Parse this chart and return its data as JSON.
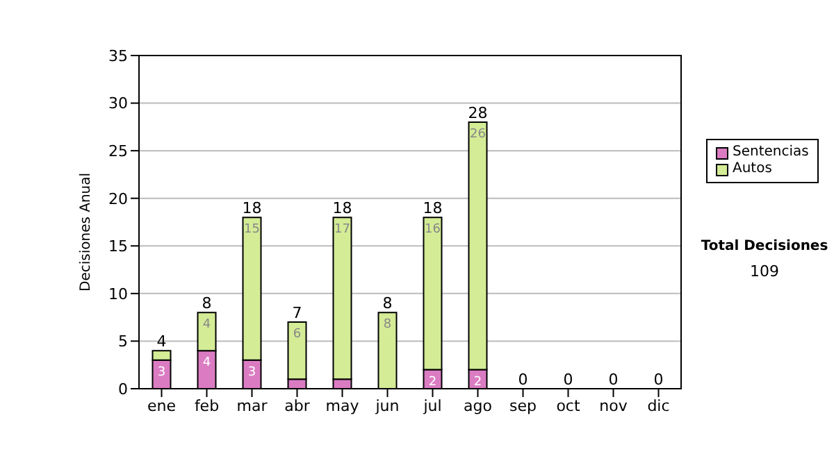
{
  "chart_data": {
    "type": "bar",
    "stacked": true,
    "ylabel": "Decisiones Anual",
    "categories": [
      "ene",
      "feb",
      "mar",
      "abr",
      "may",
      "jun",
      "jul",
      "ago",
      "sep",
      "oct",
      "nov",
      "dic"
    ],
    "series": [
      {
        "name": "Sentencias",
        "color": "#db7cc3",
        "values": [
          3,
          4,
          3,
          1,
          1,
          0,
          2,
          2,
          0,
          0,
          0,
          0
        ],
        "value_labels": [
          "3",
          "4",
          "3",
          null,
          null,
          null,
          "2",
          "2",
          null,
          null,
          null,
          null
        ]
      },
      {
        "name": "Autos",
        "color": "#d4ec96",
        "values": [
          1,
          4,
          15,
          6,
          17,
          8,
          16,
          26,
          0,
          0,
          0,
          0
        ],
        "value_labels": [
          null,
          "4",
          "15",
          "6",
          "17",
          "8",
          "16",
          "26",
          null,
          null,
          null,
          null
        ]
      }
    ],
    "totals": [
      "4",
      "8",
      "18",
      "7",
      "18",
      "8",
      "18",
      "28",
      "0",
      "0",
      "0",
      "0"
    ],
    "ylim": [
      0,
      35
    ],
    "yticks": [
      0,
      5,
      10,
      15,
      20,
      25,
      30,
      35
    ],
    "grid": "y",
    "legend": "right",
    "annotations": [
      "Total Decisiones",
      "109"
    ]
  }
}
